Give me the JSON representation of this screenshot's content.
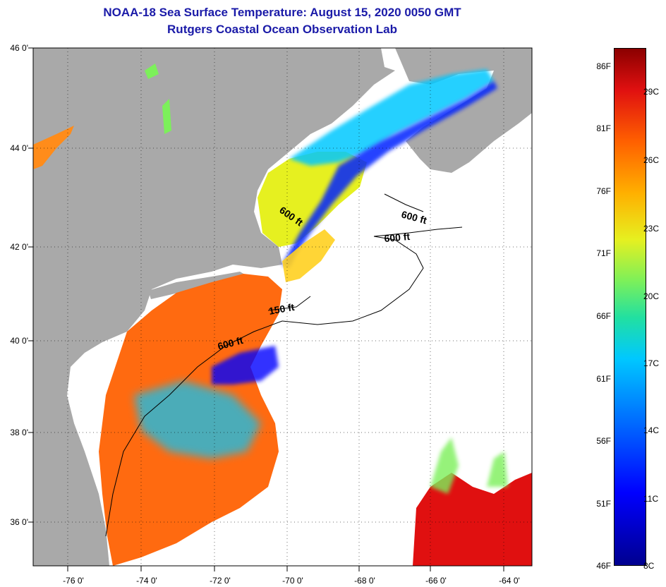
{
  "title_line1": "NOAA-18 Sea Surface Temperature:  August 15, 2020 0050 GMT",
  "title_line2": "Rutgers Coastal Ocean Observation Lab",
  "map": {
    "lat_labels": [
      "46 0'",
      "44 0'",
      "42 0'",
      "40 0'",
      "38 0'",
      "36 0'"
    ],
    "lon_labels": [
      "-76 0'",
      "-74 0'",
      "-72 0'",
      "-70 0'",
      "-68 0'",
      "-66 0'",
      "-64 0'"
    ],
    "contour_labels": [
      "600 ft",
      "600 ft",
      "600 ft",
      "150 ft",
      "600 ft"
    ],
    "colors": {
      "land": "#a9a9a9",
      "no_data": "#ffffff",
      "warm": "#ff6a10",
      "mid": "#e6f020",
      "cool": "#00c8ff",
      "cold": "#0000ff",
      "hot": "#e01010"
    }
  },
  "colorbar": {
    "fahrenheit": [
      "86F",
      "81F",
      "76F",
      "71F",
      "66F",
      "61F",
      "56F",
      "51F",
      "46F"
    ],
    "celsius": [
      "29C",
      "26C",
      "23C",
      "20C",
      "17C",
      "14C",
      "11C",
      "8C"
    ]
  }
}
